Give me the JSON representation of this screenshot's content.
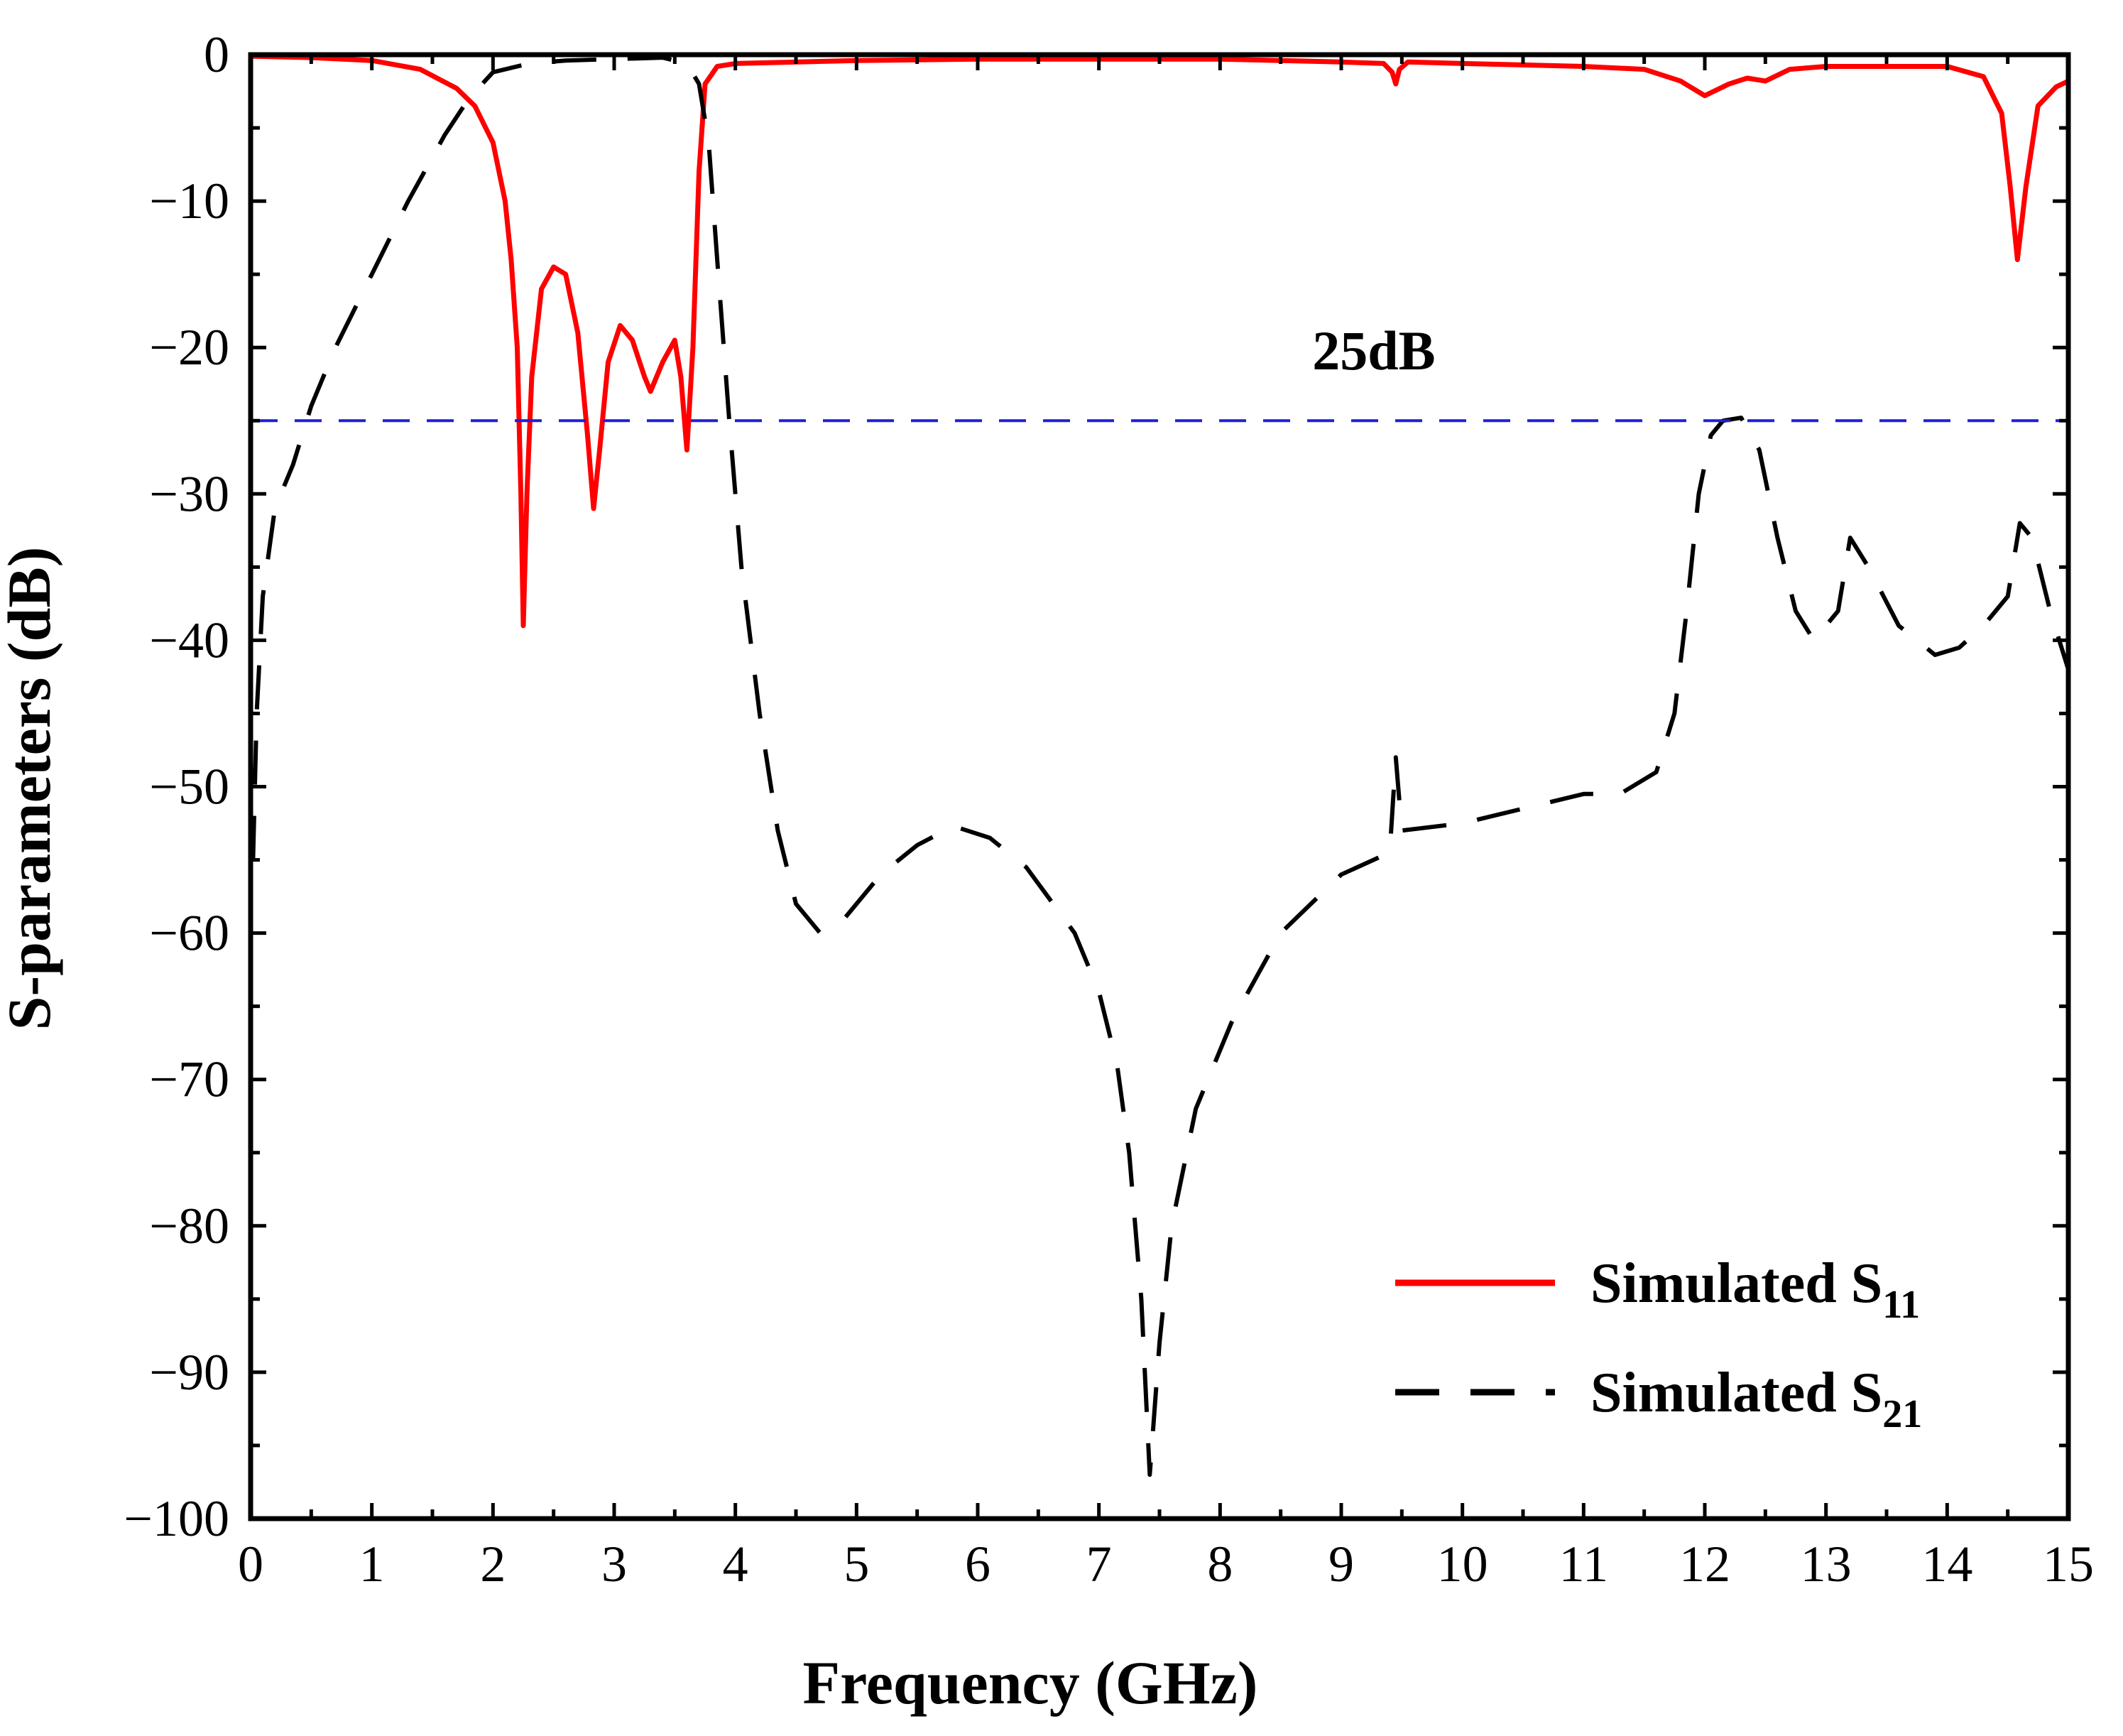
{
  "chart_data": {
    "type": "line",
    "title": "",
    "xlabel": "Frequency (GHz)",
    "ylabel": "S-parameters (dB)",
    "xlim": [
      0,
      15
    ],
    "ylim": [
      -100,
      0
    ],
    "xticks": [
      "0",
      "1",
      "2",
      "3",
      "4",
      "5",
      "6",
      "7",
      "8",
      "9",
      "10",
      "11",
      "12",
      "13",
      "14",
      "15"
    ],
    "yticks": [
      "0",
      "−10",
      "−20",
      "−30",
      "−40",
      "−50",
      "−60",
      "−70",
      "−80",
      "−90",
      "−100"
    ],
    "grid": false,
    "legend_position": "bottom-right",
    "colors": {
      "s11": "#ff0000",
      "s21": "#000000",
      "threshold": "#1f1fd6",
      "axis": "#000000"
    },
    "threshold": {
      "value": -25,
      "label": "25dB"
    },
    "series": [
      {
        "name": "Simulated S11",
        "legend_main": "Simulated S",
        "legend_sub": "11",
        "style": "solid",
        "points": [
          [
            0,
            -0.1
          ],
          [
            0.5,
            -0.2
          ],
          [
            1.0,
            -0.4
          ],
          [
            1.4,
            -1.0
          ],
          [
            1.7,
            -2.3
          ],
          [
            1.85,
            -3.5
          ],
          [
            2.0,
            -6
          ],
          [
            2.1,
            -10
          ],
          [
            2.15,
            -14
          ],
          [
            2.2,
            -20
          ],
          [
            2.23,
            -30
          ],
          [
            2.25,
            -39
          ],
          [
            2.28,
            -30
          ],
          [
            2.32,
            -22
          ],
          [
            2.4,
            -16
          ],
          [
            2.5,
            -14.5
          ],
          [
            2.6,
            -15
          ],
          [
            2.7,
            -19
          ],
          [
            2.78,
            -26
          ],
          [
            2.83,
            -31
          ],
          [
            2.88,
            -27
          ],
          [
            2.95,
            -21
          ],
          [
            3.05,
            -18.5
          ],
          [
            3.15,
            -19.5
          ],
          [
            3.25,
            -22
          ],
          [
            3.3,
            -23
          ],
          [
            3.4,
            -21
          ],
          [
            3.5,
            -19.5
          ],
          [
            3.55,
            -22
          ],
          [
            3.6,
            -27
          ],
          [
            3.65,
            -20
          ],
          [
            3.7,
            -8
          ],
          [
            3.75,
            -2
          ],
          [
            3.85,
            -0.8
          ],
          [
            4,
            -0.6
          ],
          [
            5,
            -0.4
          ],
          [
            6,
            -0.3
          ],
          [
            7,
            -0.3
          ],
          [
            8,
            -0.3
          ],
          [
            9,
            -0.5
          ],
          [
            9.35,
            -0.6
          ],
          [
            9.42,
            -1.2
          ],
          [
            9.45,
            -2.0
          ],
          [
            9.48,
            -1.0
          ],
          [
            9.55,
            -0.5
          ],
          [
            10,
            -0.6
          ],
          [
            11,
            -0.8
          ],
          [
            11.5,
            -1.0
          ],
          [
            11.8,
            -1.8
          ],
          [
            12.0,
            -2.8
          ],
          [
            12.2,
            -2.0
          ],
          [
            12.35,
            -1.6
          ],
          [
            12.5,
            -1.8
          ],
          [
            12.7,
            -1.0
          ],
          [
            13,
            -0.8
          ],
          [
            14,
            -0.8
          ],
          [
            14.3,
            -1.5
          ],
          [
            14.45,
            -4
          ],
          [
            14.52,
            -9
          ],
          [
            14.58,
            -14
          ],
          [
            14.65,
            -9
          ],
          [
            14.75,
            -3.5
          ],
          [
            14.9,
            -2.2
          ],
          [
            15,
            -1.8
          ]
        ]
      },
      {
        "name": "Simulated S21",
        "legend_main": "Simulated S",
        "legend_sub": "21",
        "style": "dashed",
        "points": [
          [
            0.02,
            -55
          ],
          [
            0.05,
            -45
          ],
          [
            0.1,
            -37
          ],
          [
            0.2,
            -31
          ],
          [
            0.35,
            -28
          ],
          [
            0.5,
            -24
          ],
          [
            0.7,
            -20
          ],
          [
            1.0,
            -15
          ],
          [
            1.3,
            -10
          ],
          [
            1.6,
            -5.5
          ],
          [
            1.8,
            -3
          ],
          [
            2.0,
            -1.2
          ],
          [
            2.3,
            -0.6
          ],
          [
            2.6,
            -0.4
          ],
          [
            3.0,
            -0.3
          ],
          [
            3.4,
            -0.2
          ],
          [
            3.6,
            -0.6
          ],
          [
            3.7,
            -2
          ],
          [
            3.78,
            -6
          ],
          [
            3.85,
            -14
          ],
          [
            3.95,
            -25
          ],
          [
            4.05,
            -35
          ],
          [
            4.2,
            -45
          ],
          [
            4.35,
            -53
          ],
          [
            4.5,
            -58
          ],
          [
            4.7,
            -60
          ],
          [
            4.9,
            -59
          ],
          [
            5.2,
            -56
          ],
          [
            5.5,
            -54
          ],
          [
            5.8,
            -52.7
          ],
          [
            6.1,
            -53.5
          ],
          [
            6.4,
            -55.5
          ],
          [
            6.8,
            -60
          ],
          [
            7.0,
            -64
          ],
          [
            7.15,
            -69
          ],
          [
            7.25,
            -75
          ],
          [
            7.35,
            -85
          ],
          [
            7.42,
            -97
          ],
          [
            7.5,
            -88
          ],
          [
            7.6,
            -80
          ],
          [
            7.8,
            -72
          ],
          [
            8.1,
            -66
          ],
          [
            8.5,
            -60
          ],
          [
            9.0,
            -56
          ],
          [
            9.4,
            -54.5
          ],
          [
            9.45,
            -48
          ],
          [
            9.5,
            -53
          ],
          [
            10,
            -52.5
          ],
          [
            10.5,
            -51.5
          ],
          [
            11,
            -50.5
          ],
          [
            11.3,
            -50.5
          ],
          [
            11.6,
            -49
          ],
          [
            11.75,
            -45
          ],
          [
            11.85,
            -38
          ],
          [
            11.95,
            -30
          ],
          [
            12.05,
            -26
          ],
          [
            12.15,
            -25
          ],
          [
            12.3,
            -24.8
          ],
          [
            12.45,
            -27
          ],
          [
            12.6,
            -33
          ],
          [
            12.75,
            -38
          ],
          [
            12.9,
            -40
          ],
          [
            13.1,
            -38
          ],
          [
            13.2,
            -33
          ],
          [
            13.35,
            -35
          ],
          [
            13.6,
            -39
          ],
          [
            13.9,
            -41
          ],
          [
            14.1,
            -40.5
          ],
          [
            14.3,
            -39
          ],
          [
            14.5,
            -37
          ],
          [
            14.6,
            -32
          ],
          [
            14.7,
            -33
          ],
          [
            14.85,
            -38
          ],
          [
            15,
            -42
          ]
        ]
      }
    ]
  }
}
